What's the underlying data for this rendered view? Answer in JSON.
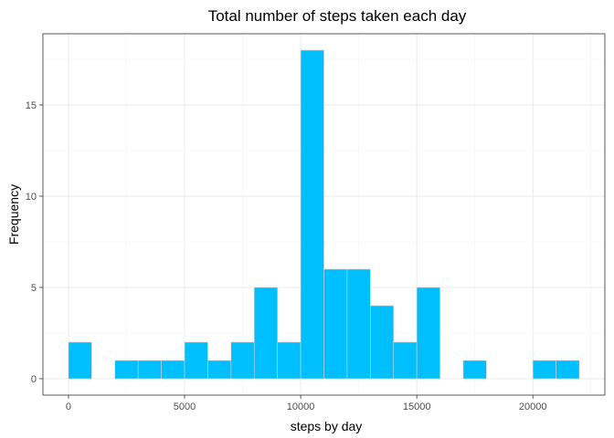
{
  "chart_data": {
    "type": "bar",
    "title": "Total number of steps taken each day",
    "xlabel": "steps by day",
    "ylabel": "Frequency",
    "binwidth": 1000,
    "bins": [
      {
        "x0": 0,
        "x1": 1000,
        "count": 2
      },
      {
        "x0": 1000,
        "x1": 2000,
        "count": 0
      },
      {
        "x0": 2000,
        "x1": 3000,
        "count": 1
      },
      {
        "x0": 3000,
        "x1": 4000,
        "count": 1
      },
      {
        "x0": 4000,
        "x1": 5000,
        "count": 1
      },
      {
        "x0": 5000,
        "x1": 6000,
        "count": 2
      },
      {
        "x0": 6000,
        "x1": 7000,
        "count": 1
      },
      {
        "x0": 7000,
        "x1": 8000,
        "count": 2
      },
      {
        "x0": 8000,
        "x1": 9000,
        "count": 5
      },
      {
        "x0": 9000,
        "x1": 10000,
        "count": 2
      },
      {
        "x0": 10000,
        "x1": 11000,
        "count": 18
      },
      {
        "x0": 11000,
        "x1": 12000,
        "count": 6
      },
      {
        "x0": 12000,
        "x1": 13000,
        "count": 6
      },
      {
        "x0": 13000,
        "x1": 14000,
        "count": 4
      },
      {
        "x0": 14000,
        "x1": 15000,
        "count": 2
      },
      {
        "x0": 15000,
        "x1": 16000,
        "count": 5
      },
      {
        "x0": 16000,
        "x1": 17000,
        "count": 0
      },
      {
        "x0": 17000,
        "x1": 18000,
        "count": 1
      },
      {
        "x0": 18000,
        "x1": 19000,
        "count": 0
      },
      {
        "x0": 19000,
        "x1": 20000,
        "count": 0
      },
      {
        "x0": 20000,
        "x1": 21000,
        "count": 1
      },
      {
        "x0": 21000,
        "x1": 22000,
        "count": 1
      }
    ],
    "xlim": [
      -1100,
      23100
    ],
    "ylim": [
      -0.9,
      18.9
    ],
    "xticks": [
      0,
      5000,
      10000,
      15000,
      20000
    ],
    "yticks": [
      0,
      5,
      10,
      15
    ],
    "colors": {
      "fill": "#00BFFF",
      "outline": "#D3D3D3"
    },
    "grid": true,
    "legend": "none"
  }
}
